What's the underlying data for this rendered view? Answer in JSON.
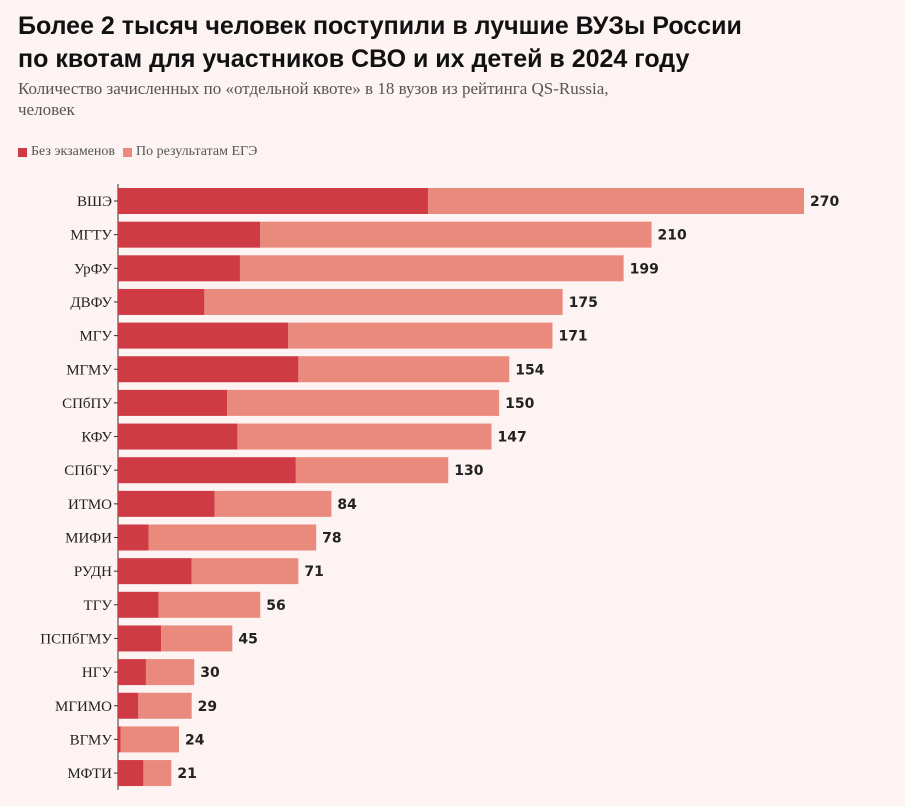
{
  "title_lines": [
    "Более 2 тысяч человек поступили в лучшие ВУЗы России",
    "по квотам для участников СВО и их детей в 2024 году"
  ],
  "subtitle_lines": [
    "Количество зачисленных по «отдельной квоте» в 18 вузов из рейтинга QS-Russia,",
    "человек"
  ],
  "legend": [
    {
      "label": "Без экзаменов",
      "color": "#cf3b45"
    },
    {
      "label": "По результатам ЕГЭ",
      "color": "#ea8a7d"
    }
  ],
  "chart_data": {
    "type": "bar",
    "orientation": "horizontal",
    "stacked": true,
    "categories": [
      "ВШЭ",
      "МГТУ",
      "УрФУ",
      "ДВФУ",
      "МГУ",
      "МГМУ",
      "СПбПУ",
      "КФУ",
      "СПбГУ",
      "ИТМО",
      "МИФИ",
      "РУДН",
      "ТГУ",
      "ПСПбГМУ",
      "НГУ",
      "МГИМО",
      "ВГМУ",
      "МФТИ"
    ],
    "series": [
      {
        "name": "Без экзаменов",
        "color": "#cf3b45",
        "values": [
          122,
          56,
          48,
          34,
          67,
          71,
          43,
          47,
          70,
          38,
          12,
          29,
          16,
          17,
          11,
          8,
          1,
          10
        ]
      },
      {
        "name": "По результатам ЕГЭ",
        "color": "#ea8a7d",
        "values": [
          148,
          154,
          151,
          141,
          104,
          83,
          107,
          100,
          60,
          46,
          66,
          42,
          40,
          28,
          19,
          21,
          23,
          11
        ]
      }
    ],
    "totals": [
      270,
      210,
      199,
      175,
      171,
      154,
      150,
      147,
      130,
      84,
      78,
      71,
      56,
      45,
      30,
      29,
      24,
      21
    ],
    "xlim": [
      0,
      270
    ]
  }
}
